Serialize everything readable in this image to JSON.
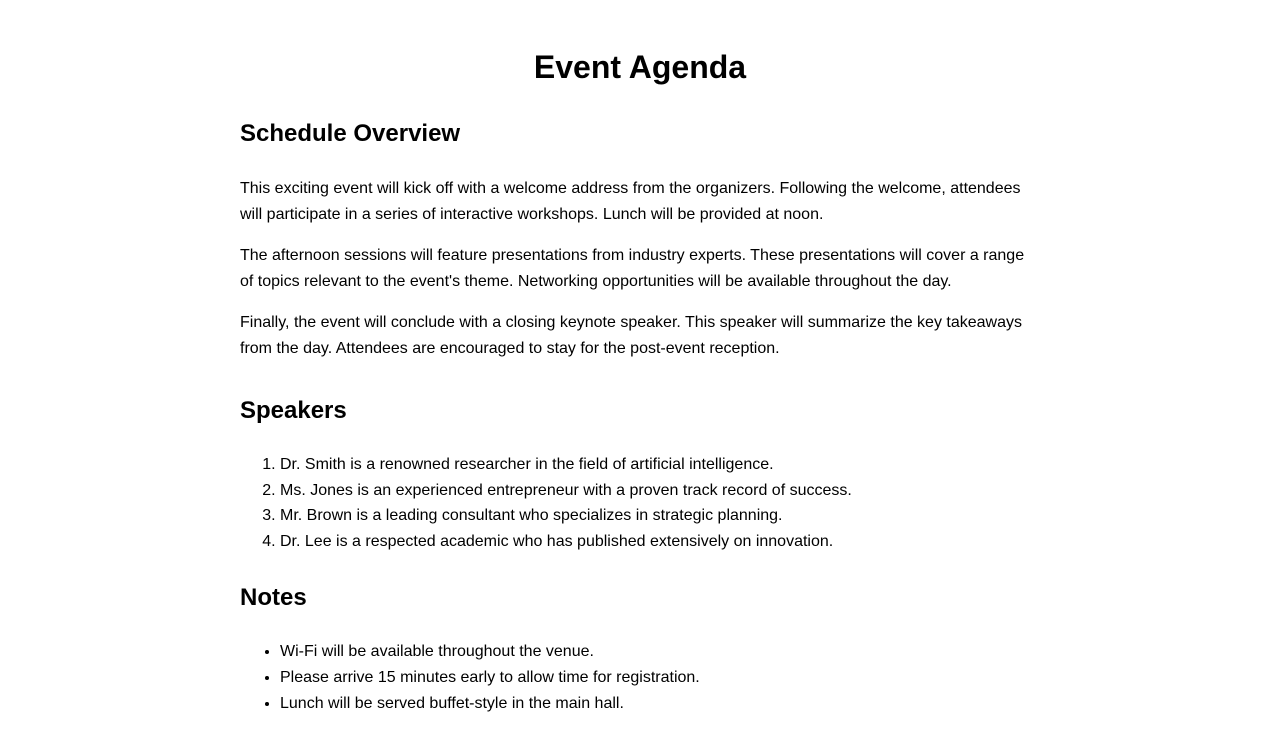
{
  "title": "Event Agenda",
  "schedule": {
    "heading": "Schedule Overview",
    "paragraphs": [
      "This exciting event will kick off with a welcome address from the organizers. Following the welcome, attendees will participate in a series of interactive workshops. Lunch will be provided at noon.",
      "The afternoon sessions will feature presentations from industry experts. These presentations will cover a range of topics relevant to the event's theme. Networking opportunities will be available throughout the day.",
      "Finally, the event will conclude with a closing keynote speaker. This speaker will summarize the key takeaways from the day. Attendees are encouraged to stay for the post-event reception."
    ]
  },
  "speakers": {
    "heading": "Speakers",
    "items": [
      "Dr. Smith is a renowned researcher in the field of artificial intelligence.",
      "Ms. Jones is an experienced entrepreneur with a proven track record of success.",
      "Mr. Brown is a leading consultant who specializes in strategic planning.",
      "Dr. Lee is a respected academic who has published extensively on innovation."
    ]
  },
  "notes": {
    "heading": "Notes",
    "items": [
      "Wi-Fi will be available throughout the venue.",
      "Please arrive 15 minutes early to allow time for registration.",
      "Lunch will be served buffet-style in the main hall."
    ]
  }
}
